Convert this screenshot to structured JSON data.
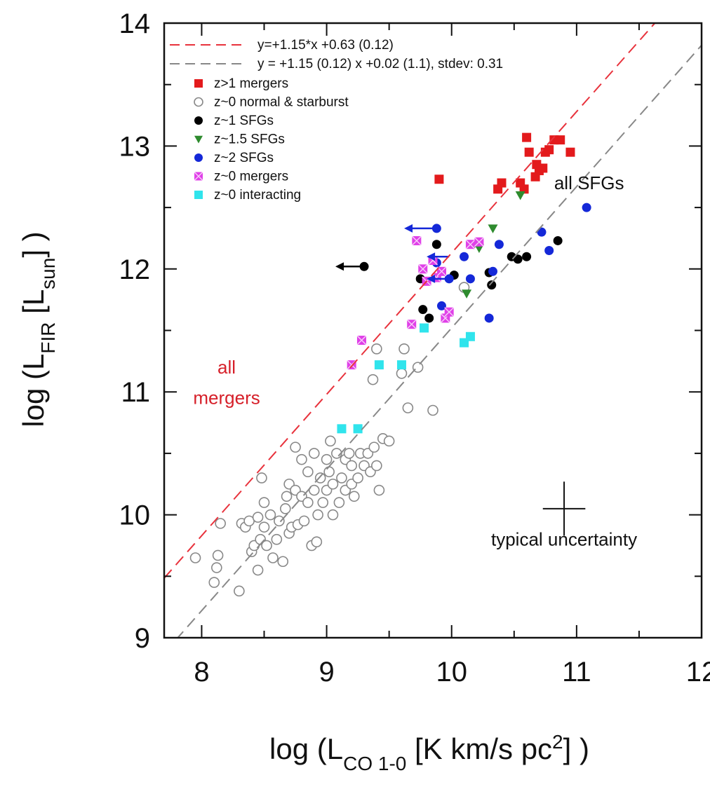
{
  "chart_data": {
    "type": "scatter",
    "xlim": [
      7.7,
      12
    ],
    "ylim": [
      9,
      14
    ],
    "x_ticks": [
      8,
      9,
      10,
      11,
      12
    ],
    "y_ticks": [
      9,
      10,
      11,
      12,
      13,
      14
    ],
    "xlabel": {
      "pre": "log (L",
      "sub": "CO 1-0",
      "mid": " [K km/s pc",
      "sup": "2",
      "post": "] )"
    },
    "ylabel": {
      "pre": "log (L",
      "sub": "FIR",
      "mid": " [L",
      "sub2": "sun",
      "post": "] )"
    },
    "grid": false,
    "legend_position": "top-left",
    "fit_lines": [
      {
        "label": "y=+1.15*x +0.63 (0.12)",
        "slope": 1.15,
        "intercept": 0.63,
        "color": "#e8323c",
        "dash": true
      },
      {
        "label": "y = +1.15 (0.12) x +0.02 (1.1), stdev: 0.31",
        "slope": 1.15,
        "intercept": 0.02,
        "color": "#888888",
        "dash": true
      }
    ],
    "annotations": [
      {
        "text": "all",
        "x": 8.2,
        "y": 11.15,
        "color": "#d6202a"
      },
      {
        "text": "mergers",
        "x": 8.2,
        "y": 10.9,
        "color": "#d6202a"
      },
      {
        "text": "all SFGs",
        "x": 11.1,
        "y": 12.65,
        "color": "#111111"
      },
      {
        "text": "typical uncertainty",
        "x": 10.9,
        "y": 9.75,
        "color": "#111111"
      }
    ],
    "typical_uncertainty": {
      "x": 10.9,
      "y": 10.05,
      "xerr": 0.17,
      "yerr": 0.22
    },
    "series": [
      {
        "name": "z>1 mergers",
        "marker": "square",
        "color": "#e31a1c",
        "filled": true,
        "points": [
          [
            9.9,
            12.73
          ],
          [
            10.37,
            12.65
          ],
          [
            10.4,
            12.7
          ],
          [
            10.55,
            12.7
          ],
          [
            10.58,
            12.65
          ],
          [
            10.6,
            13.07
          ],
          [
            10.62,
            12.95
          ],
          [
            10.67,
            12.75
          ],
          [
            10.68,
            12.85
          ],
          [
            10.7,
            12.8
          ],
          [
            10.73,
            12.82
          ],
          [
            10.75,
            12.95
          ],
          [
            10.78,
            12.97
          ],
          [
            10.82,
            13.05
          ],
          [
            10.87,
            13.05
          ],
          [
            10.95,
            12.95
          ]
        ]
      },
      {
        "name": "z~0 normal & starburst",
        "marker": "circle",
        "color": "#888888",
        "filled": false,
        "points": [
          [
            7.95,
            9.65
          ],
          [
            8.1,
            9.45
          ],
          [
            8.12,
            9.57
          ],
          [
            8.13,
            9.67
          ],
          [
            8.15,
            9.93
          ],
          [
            8.3,
            9.38
          ],
          [
            8.32,
            9.93
          ],
          [
            8.35,
            9.9
          ],
          [
            8.38,
            9.95
          ],
          [
            8.4,
            9.7
          ],
          [
            8.42,
            9.75
          ],
          [
            8.45,
            9.55
          ],
          [
            8.45,
            9.98
          ],
          [
            8.47,
            9.8
          ],
          [
            8.48,
            10.3
          ],
          [
            8.5,
            9.9
          ],
          [
            8.5,
            10.1
          ],
          [
            8.52,
            9.75
          ],
          [
            8.55,
            10.0
          ],
          [
            8.57,
            9.65
          ],
          [
            8.6,
            9.8
          ],
          [
            8.62,
            9.95
          ],
          [
            8.65,
            9.62
          ],
          [
            8.67,
            10.05
          ],
          [
            8.68,
            10.15
          ],
          [
            8.7,
            9.85
          ],
          [
            8.7,
            10.25
          ],
          [
            8.72,
            9.9
          ],
          [
            8.75,
            10.2
          ],
          [
            8.75,
            10.55
          ],
          [
            8.77,
            9.92
          ],
          [
            8.8,
            10.45
          ],
          [
            8.8,
            10.15
          ],
          [
            8.82,
            9.95
          ],
          [
            8.85,
            10.1
          ],
          [
            8.85,
            10.35
          ],
          [
            8.88,
            9.75
          ],
          [
            8.9,
            10.2
          ],
          [
            8.9,
            10.5
          ],
          [
            8.92,
            9.78
          ],
          [
            8.93,
            10.0
          ],
          [
            8.95,
            10.3
          ],
          [
            8.97,
            10.1
          ],
          [
            9.0,
            10.2
          ],
          [
            9.0,
            10.45
          ],
          [
            9.02,
            10.35
          ],
          [
            9.03,
            10.6
          ],
          [
            9.05,
            10.0
          ],
          [
            9.05,
            10.25
          ],
          [
            9.08,
            10.5
          ],
          [
            9.1,
            10.1
          ],
          [
            9.12,
            10.3
          ],
          [
            9.15,
            10.2
          ],
          [
            9.15,
            10.45
          ],
          [
            9.18,
            10.5
          ],
          [
            9.2,
            10.4
          ],
          [
            9.2,
            10.25
          ],
          [
            9.22,
            10.15
          ],
          [
            9.25,
            10.3
          ],
          [
            9.27,
            10.5
          ],
          [
            9.3,
            10.4
          ],
          [
            9.33,
            10.5
          ],
          [
            9.35,
            10.35
          ],
          [
            9.38,
            10.55
          ],
          [
            9.4,
            10.4
          ],
          [
            9.42,
            10.2
          ],
          [
            9.45,
            10.62
          ],
          [
            9.5,
            10.6
          ],
          [
            9.37,
            11.1
          ],
          [
            9.4,
            11.35
          ],
          [
            9.6,
            11.15
          ],
          [
            9.62,
            11.35
          ],
          [
            9.65,
            10.87
          ],
          [
            9.73,
            11.2
          ],
          [
            9.85,
            10.85
          ],
          [
            10.1,
            11.85
          ]
        ]
      },
      {
        "name": "z~1 SFGs",
        "marker": "circle",
        "color": "#000000",
        "filled": true,
        "points": [
          [
            9.3,
            12.02
          ],
          [
            9.75,
            11.92
          ],
          [
            9.77,
            11.67
          ],
          [
            9.82,
            11.6
          ],
          [
            9.88,
            12.2
          ],
          [
            10.02,
            11.95
          ],
          [
            10.3,
            11.97
          ],
          [
            10.32,
            11.87
          ],
          [
            10.48,
            12.1
          ],
          [
            10.53,
            12.08
          ],
          [
            10.6,
            12.1
          ],
          [
            10.85,
            12.23
          ]
        ]
      },
      {
        "name": "z~1.5 SFGs",
        "marker": "triangle-down",
        "color": "#2e8b2e",
        "filled": true,
        "points": [
          [
            10.12,
            11.8
          ],
          [
            10.18,
            12.2
          ],
          [
            10.22,
            12.17
          ],
          [
            10.33,
            12.33
          ],
          [
            10.55,
            12.6
          ]
        ]
      },
      {
        "name": "z~2 SFGs",
        "marker": "circle",
        "color": "#1428d8",
        "filled": true,
        "points": [
          [
            9.88,
            12.33
          ],
          [
            9.88,
            12.05
          ],
          [
            9.92,
            11.7
          ],
          [
            9.98,
            11.92
          ],
          [
            10.1,
            12.1
          ],
          [
            10.15,
            11.92
          ],
          [
            10.3,
            11.6
          ],
          [
            10.33,
            11.98
          ],
          [
            10.38,
            12.2
          ],
          [
            10.72,
            12.3
          ],
          [
            10.78,
            12.15
          ],
          [
            11.08,
            12.5
          ]
        ]
      },
      {
        "name": "z~0 mergers",
        "marker": "square-x",
        "color": "#e040e8",
        "filled": true,
        "points": [
          [
            9.2,
            11.22
          ],
          [
            9.28,
            11.42
          ],
          [
            9.68,
            11.55
          ],
          [
            9.72,
            12.23
          ],
          [
            9.77,
            12.0
          ],
          [
            9.8,
            11.9
          ],
          [
            9.85,
            12.07
          ],
          [
            9.88,
            11.93
          ],
          [
            9.92,
            11.98
          ],
          [
            9.95,
            11.6
          ],
          [
            9.98,
            11.65
          ],
          [
            10.15,
            12.2
          ],
          [
            10.22,
            12.22
          ]
        ]
      },
      {
        "name": "z~0 interacting",
        "marker": "square",
        "color": "#30e4ec",
        "filled": true,
        "points": [
          [
            9.12,
            10.7
          ],
          [
            9.25,
            10.7
          ],
          [
            9.42,
            11.22
          ],
          [
            9.6,
            11.22
          ],
          [
            9.78,
            11.52
          ],
          [
            10.1,
            11.4
          ],
          [
            10.15,
            11.45
          ]
        ]
      }
    ],
    "upper_limits": [
      {
        "x": 9.3,
        "y": 12.02,
        "to_x": 9.07,
        "color": "#000000"
      },
      {
        "x": 9.88,
        "y": 12.33,
        "to_x": 9.62,
        "color": "#1428d8"
      },
      {
        "x": 9.98,
        "y": 12.1,
        "to_x": 9.8,
        "color": "#1428d8"
      },
      {
        "x": 9.98,
        "y": 11.92,
        "to_x": 9.8,
        "color": "#1428d8"
      }
    ]
  }
}
